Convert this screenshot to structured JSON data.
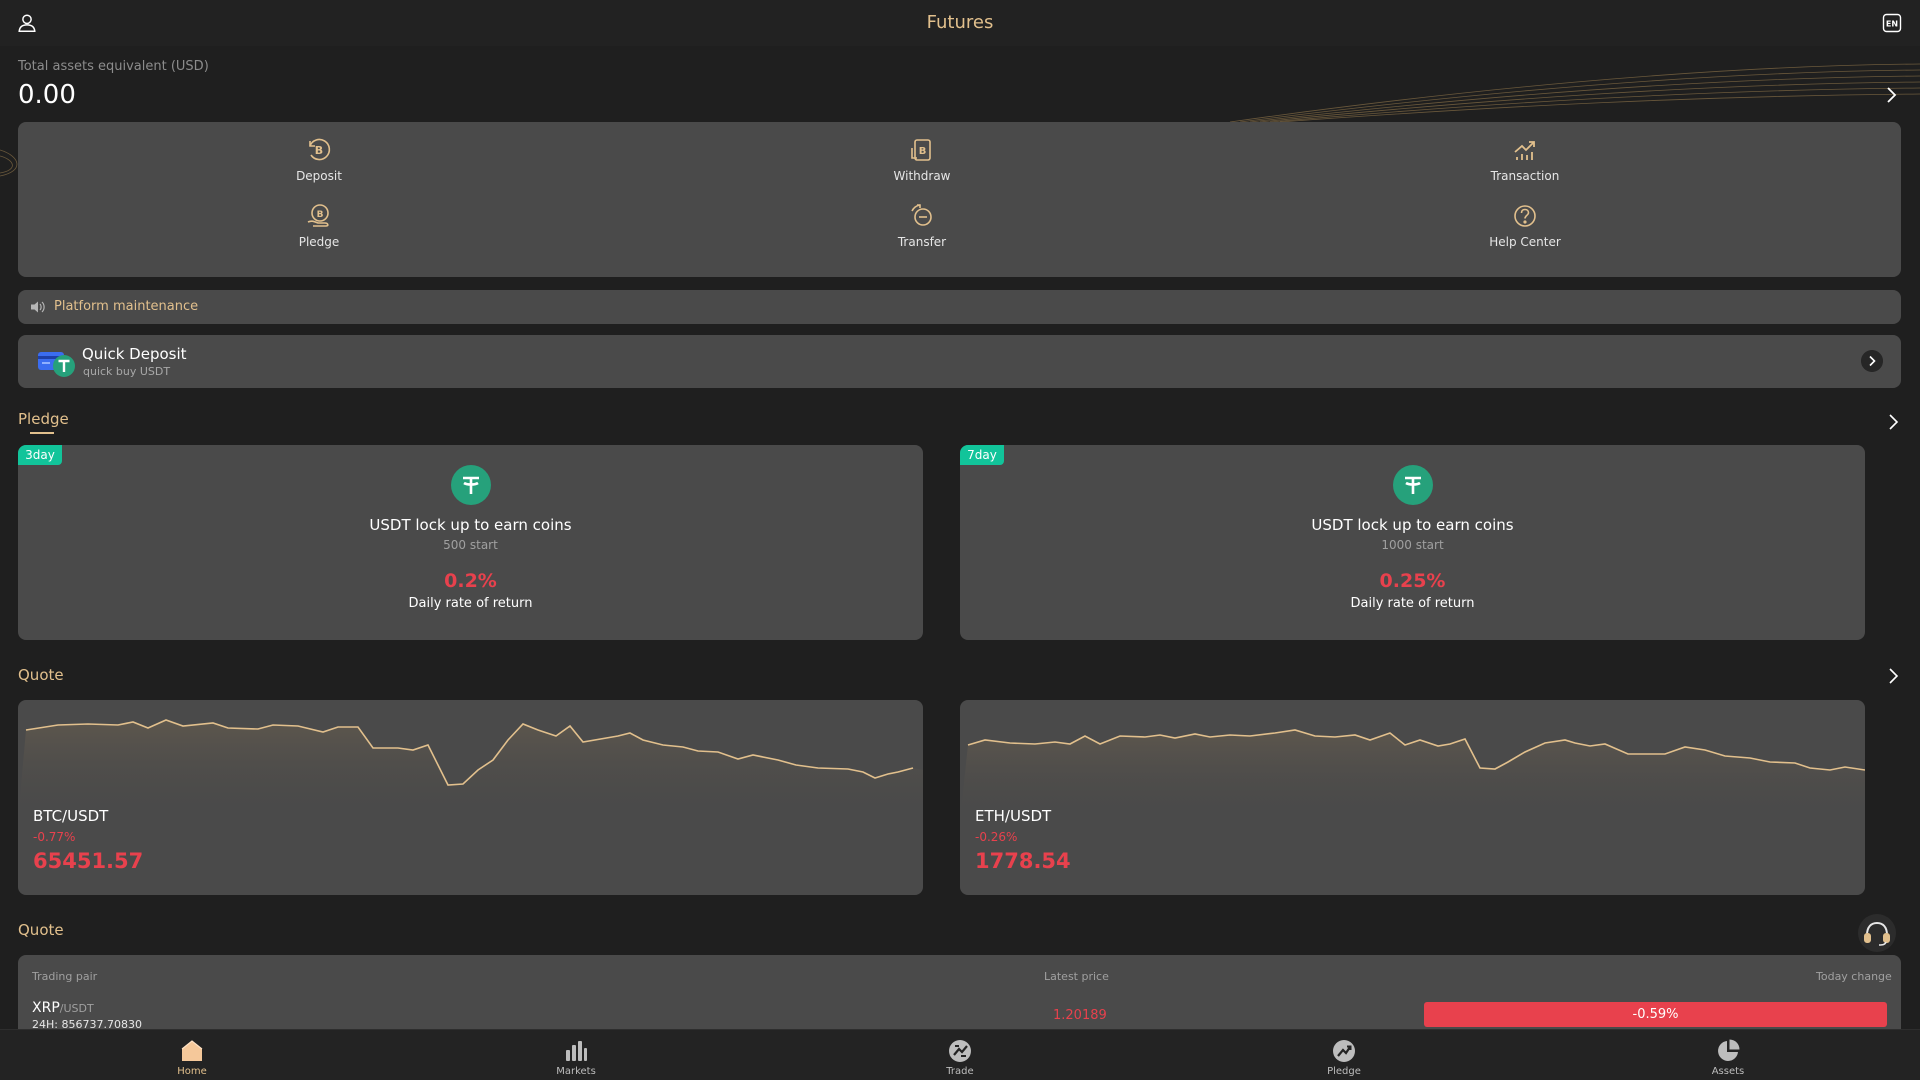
{
  "header": {
    "title": "Futures",
    "user_icon": "user-icon",
    "language_icon": "language-en-icon"
  },
  "assets": {
    "label": "Total assets equivalent  (USD)",
    "value": "0.00"
  },
  "actions": [
    {
      "label": "Deposit",
      "icon": "bitcoin-deposit-icon"
    },
    {
      "label": "Withdraw",
      "icon": "bitcoin-withdraw-icon"
    },
    {
      "label": "Transaction",
      "icon": "chart-up-icon"
    },
    {
      "label": "Pledge",
      "icon": "bitcoin-hand-icon"
    },
    {
      "label": "Transfer",
      "icon": "transfer-cycle-icon"
    },
    {
      "label": "Help Center",
      "icon": "question-icon"
    }
  ],
  "notice": {
    "text": "Platform maintenance",
    "icon": "speaker-icon"
  },
  "quick_deposit": {
    "title": "Quick Deposit",
    "subtitle": "quick buy USDT"
  },
  "pledge": {
    "title": "Pledge",
    "cards": [
      {
        "tag": "3day",
        "name": "USDT lock up to earn coins",
        "start": "500 start",
        "rate": "0.2%",
        "rate_label": "Daily rate of return"
      },
      {
        "tag": "7day",
        "name": "USDT lock up to earn coins",
        "start": "1000 start",
        "rate": "0.25%",
        "rate_label": "Daily rate of return"
      }
    ]
  },
  "quote": {
    "title": "Quote",
    "cards": [
      {
        "pair": "BTC/USDT",
        "change": "-0.77%",
        "price": "65451.57"
      },
      {
        "pair": "ETH/USDT",
        "change": "-0.26%",
        "price": "1778.54"
      }
    ]
  },
  "market_list": {
    "title": "Quote",
    "headers": {
      "pair": "Trading pair",
      "price": "Latest price",
      "change": "Today change"
    },
    "rows": [
      {
        "base": "XRP",
        "quote": "/USDT",
        "volume": "24H: 856737.70830",
        "price": "1.20189",
        "change": "-0.59%"
      }
    ]
  },
  "bottom_nav": [
    {
      "label": "Home",
      "icon": "home-icon",
      "active": true
    },
    {
      "label": "Markets",
      "icon": "bar-chart-icon",
      "active": false
    },
    {
      "label": "Trade",
      "icon": "trade-icon",
      "active": false
    },
    {
      "label": "Pledge",
      "icon": "pledge-trend-icon",
      "active": false
    },
    {
      "label": "Assets",
      "icon": "pie-chart-icon",
      "active": false
    }
  ],
  "colors": {
    "accent": "#e2c08d",
    "down": "#e8414d",
    "tag": "#12c49a",
    "card": "#4a4a4a",
    "background": "#1f1f1f"
  }
}
